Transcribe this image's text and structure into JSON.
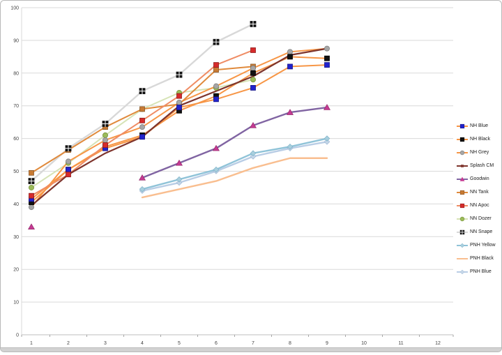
{
  "window": {
    "background": "#ffffff",
    "border_color": "#b8b8b8"
  },
  "chart_data": {
    "type": "line",
    "title": "",
    "xlabel": "",
    "ylabel": "",
    "x_categories": [
      1,
      2,
      3,
      4,
      5,
      6,
      7,
      8,
      9,
      10,
      11,
      12
    ],
    "y_min": 0,
    "y_max": 100,
    "y_step": 10,
    "grid": true,
    "gridline_color": "#d9d9d9",
    "axis_color": "#bfbfbf",
    "tick_color": "#a6a6a6",
    "label_color": "#3f3f3f",
    "legend_position": "right",
    "series": [
      {
        "name": "NH Blue",
        "line_color": "#f79646",
        "line_width": 2,
        "marker": "square",
        "marker_color": "#2323cc",
        "marker_border": "#15158a",
        "values": [
          41.5,
          50.5,
          57,
          60.5,
          69.5,
          72,
          75.5,
          82,
          82.5,
          null,
          null,
          null
        ]
      },
      {
        "name": "NH Black",
        "line_color": "#f79646",
        "line_width": 2,
        "marker": "square",
        "marker_color": "#111111",
        "marker_border": "#000000",
        "values": [
          40.5,
          50.5,
          57.5,
          61,
          68.5,
          73,
          80,
          85,
          84.5,
          null,
          null,
          null
        ]
      },
      {
        "name": "NH Grey",
        "line_color": "#f79646",
        "line_width": 2,
        "marker": "circle",
        "marker_color": "#a6a6a6",
        "marker_border": "#7f7f7f",
        "values": [
          39,
          53,
          59.5,
          63.5,
          71,
          76,
          81.5,
          86.5,
          87.5,
          null,
          null,
          null
        ]
      },
      {
        "name": "Splash CM",
        "line_color": "#7e342c",
        "line_width": 2.2,
        "marker": "none",
        "marker_color": "#7e342c",
        "marker_border": "#5a241e",
        "values": [
          39.5,
          49,
          55.5,
          60.5,
          70,
          74.5,
          79,
          85.5,
          87.5,
          null,
          null,
          null
        ]
      },
      {
        "name": "Goodwin",
        "line_color": "#8064a2",
        "line_width": 2.4,
        "marker": "triangle",
        "marker_color": "#c53a92",
        "marker_border": "#93286b",
        "values": [
          33,
          null,
          null,
          48,
          52.5,
          57,
          64,
          68,
          69.5,
          null,
          null,
          null
        ]
      },
      {
        "name": "NN Tank",
        "line_color": "#e08a3c",
        "line_width": 2,
        "marker": "square",
        "marker_color": "#c87a33",
        "marker_border": "#8a5a2b",
        "values": [
          49.5,
          56.5,
          63.5,
          69,
          70.5,
          81,
          82,
          null,
          null,
          null,
          null,
          null
        ]
      },
      {
        "name": "NN Apoc",
        "line_color": "#ef8c64",
        "line_width": 2,
        "marker": "square",
        "marker_color": "#d62b2b",
        "marker_border": "#8f1d1d",
        "values": [
          42.5,
          49,
          58,
          65.5,
          73,
          82.5,
          87,
          null,
          null,
          null,
          null,
          null
        ]
      },
      {
        "name": "NN Dozer",
        "line_color": "#d6e3b5",
        "line_width": 2,
        "marker": "circle",
        "marker_color": "#9bbb59",
        "marker_border": "#77933c",
        "values": [
          45,
          52.5,
          61,
          69,
          74,
          75.5,
          78,
          null,
          null,
          null,
          null,
          null
        ]
      },
      {
        "name": "NN Snape",
        "line_color": "#d8d8d8",
        "line_width": 2.4,
        "marker": "quad-square",
        "marker_color": "#141414",
        "marker_border": "#000000",
        "values": [
          47,
          57,
          64.5,
          74.5,
          79.5,
          89.5,
          95,
          null,
          null,
          null,
          null,
          null
        ]
      },
      {
        "name": "PNH Yellow",
        "line_color": "#8fc3d8",
        "line_width": 2.4,
        "marker": "diamond",
        "marker_color": "#a8cfde",
        "marker_border": "#7fb2c8",
        "values": [
          null,
          null,
          null,
          44.5,
          47.5,
          50.5,
          55.5,
          57.5,
          60,
          null,
          null,
          null
        ]
      },
      {
        "name": "PNH Black",
        "line_color": "#f9be8f",
        "line_width": 2.4,
        "marker": "none",
        "marker_color": "#f9be8f",
        "marker_border": "#e0a070",
        "values": [
          null,
          null,
          null,
          42,
          44.5,
          47,
          51,
          54,
          54,
          null,
          null,
          null
        ]
      },
      {
        "name": "PNH Blue",
        "line_color": "#b9cde5",
        "line_width": 2.4,
        "marker": "diamond",
        "marker_color": "#c4d6e8",
        "marker_border": "#9fb8d4",
        "values": [
          null,
          null,
          null,
          44,
          46.5,
          50,
          54.5,
          57,
          59,
          null,
          null,
          null
        ]
      }
    ]
  }
}
